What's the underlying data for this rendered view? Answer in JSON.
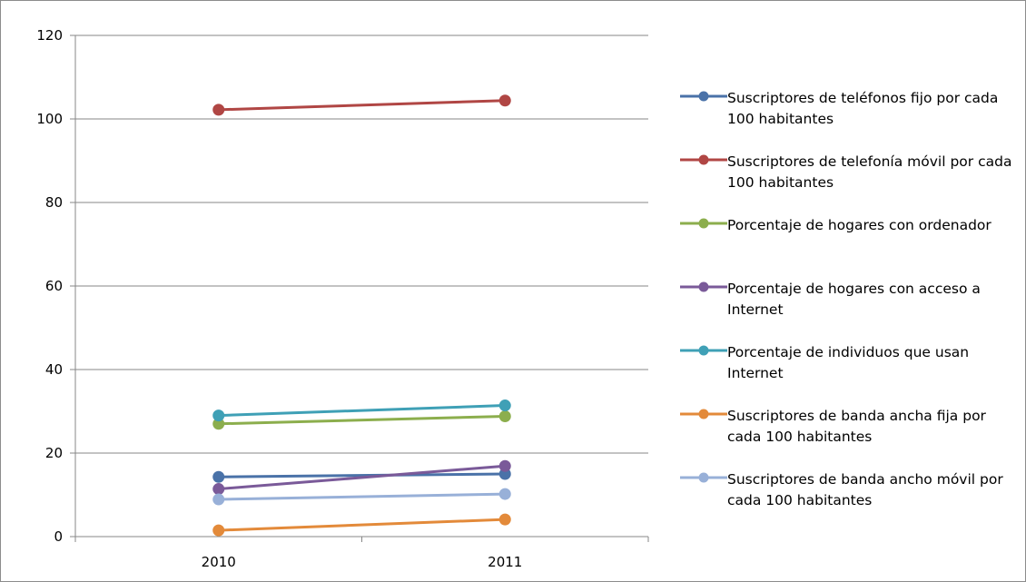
{
  "chart_data": {
    "type": "line",
    "categories": [
      "2010",
      "2011"
    ],
    "ylim": [
      0,
      120
    ],
    "yticks": [
      "0",
      "20",
      "40",
      "60",
      "80",
      "100",
      "120"
    ],
    "grid": true,
    "legend_position": "right",
    "series": [
      {
        "name": "Suscriptores de teléfonos fijo por cada 100 habitantes",
        "color": "#4a72a8",
        "values": [
          14.3,
          15.0
        ]
      },
      {
        "name": "Suscriptores de telefonía móvil por cada 100 habitantes",
        "color": "#b04644",
        "values": [
          102.2,
          104.4
        ]
      },
      {
        "name": "Porcentaje de hogares con ordenador",
        "color": "#8cae4d",
        "values": [
          27.0,
          28.8
        ]
      },
      {
        "name": "Porcentaje de hogares con acceso a Internet",
        "color": "#7a5a99",
        "values": [
          11.4,
          16.9
        ]
      },
      {
        "name": "Porcentaje de individuos que usan Internet",
        "color": "#3fa0b6",
        "values": [
          29.0,
          31.4
        ]
      },
      {
        "name": "Suscriptores de banda ancha fija por cada 100 habitantes",
        "color": "#e38a3a",
        "values": [
          1.5,
          4.1
        ]
      },
      {
        "name": " Suscriptores de banda ancho móvil por cada 100 habitantes",
        "color": "#98b0d8",
        "values": [
          8.9,
          10.2
        ]
      }
    ]
  }
}
